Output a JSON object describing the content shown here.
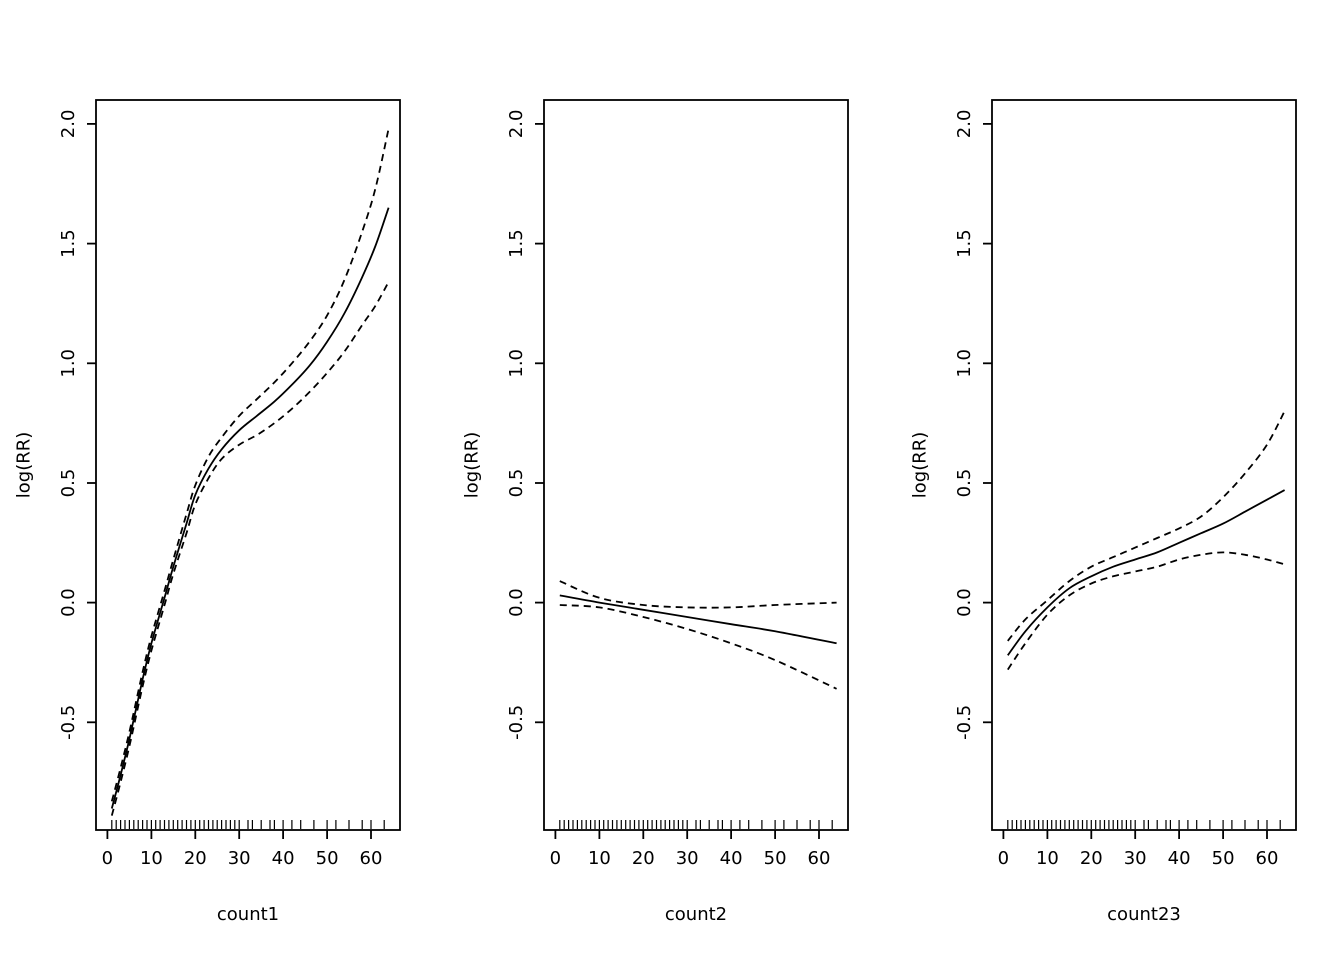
{
  "figure": {
    "background": "#ffffff",
    "line_color": "#000000"
  },
  "chart_data": [
    {
      "type": "line",
      "title": "",
      "xlabel": "count1",
      "ylabel": "log(RR)",
      "xlim": [
        -2.6,
        66.6
      ],
      "ylim": [
        -0.95,
        2.1
      ],
      "xticks": [
        "0",
        "10",
        "20",
        "30",
        "40",
        "50",
        "60"
      ],
      "xtick_values": [
        0,
        10,
        20,
        30,
        40,
        50,
        60
      ],
      "yticks": [
        "-0.5",
        "0.0",
        "0.5",
        "1.0",
        "1.5",
        "2.0"
      ],
      "ytick_values": [
        -0.5,
        0.0,
        0.5,
        1.0,
        1.5,
        2.0
      ],
      "grid": false,
      "legend": "none",
      "x": [
        1,
        3,
        5,
        8,
        10,
        13,
        15,
        18,
        20,
        23,
        26,
        30,
        34,
        38,
        42,
        46,
        50,
        54,
        58,
        61,
        64
      ],
      "series": [
        {
          "name": "estimate",
          "style": "solid",
          "values": [
            -0.86,
            -0.72,
            -0.57,
            -0.32,
            -0.17,
            0.02,
            0.15,
            0.33,
            0.45,
            0.56,
            0.64,
            0.72,
            0.78,
            0.84,
            0.91,
            0.99,
            1.09,
            1.21,
            1.36,
            1.49,
            1.65
          ]
        },
        {
          "name": "upper-ci",
          "style": "dashed",
          "values": [
            -0.83,
            -0.69,
            -0.54,
            -0.29,
            -0.14,
            0.05,
            0.18,
            0.37,
            0.49,
            0.61,
            0.69,
            0.78,
            0.85,
            0.92,
            1.0,
            1.09,
            1.2,
            1.35,
            1.55,
            1.73,
            1.98
          ]
        },
        {
          "name": "lower-ci",
          "style": "dashed",
          "values": [
            -0.89,
            -0.75,
            -0.6,
            -0.35,
            -0.2,
            -0.01,
            0.12,
            0.29,
            0.41,
            0.52,
            0.6,
            0.66,
            0.7,
            0.75,
            0.81,
            0.88,
            0.96,
            1.05,
            1.16,
            1.24,
            1.34
          ]
        }
      ],
      "rug": [
        1,
        2,
        3,
        4,
        5,
        6,
        7,
        8,
        9,
        10,
        11,
        12,
        13,
        14,
        15,
        16,
        17,
        18,
        19,
        20,
        21,
        22,
        23,
        24,
        25,
        26,
        27,
        28,
        29,
        30,
        32,
        33,
        35,
        37,
        38,
        40,
        42,
        44,
        47,
        50,
        52,
        55,
        58,
        60,
        63
      ]
    },
    {
      "type": "line",
      "title": "",
      "xlabel": "count2",
      "ylabel": "log(RR)",
      "xlim": [
        -2.6,
        66.6
      ],
      "ylim": [
        -0.95,
        2.1
      ],
      "xticks": [
        "0",
        "10",
        "20",
        "30",
        "40",
        "50",
        "60"
      ],
      "xtick_values": [
        0,
        10,
        20,
        30,
        40,
        50,
        60
      ],
      "yticks": [
        "-0.5",
        "0.0",
        "0.5",
        "1.0",
        "1.5",
        "2.0"
      ],
      "ytick_values": [
        -0.5,
        0.0,
        0.5,
        1.0,
        1.5,
        2.0
      ],
      "grid": false,
      "legend": "none",
      "x": [
        1,
        10,
        20,
        30,
        40,
        50,
        64
      ],
      "series": [
        {
          "name": "estimate",
          "style": "solid",
          "values": [
            0.03,
            0.0,
            -0.03,
            -0.06,
            -0.09,
            -0.12,
            -0.17
          ]
        },
        {
          "name": "upper-ci",
          "style": "dashed",
          "values": [
            0.09,
            0.02,
            -0.01,
            -0.02,
            -0.02,
            -0.01,
            0.0
          ]
        },
        {
          "name": "lower-ci",
          "style": "dashed",
          "values": [
            -0.01,
            -0.02,
            -0.06,
            -0.11,
            -0.17,
            -0.24,
            -0.36
          ]
        }
      ],
      "rug": [
        1,
        2,
        3,
        4,
        5,
        6,
        7,
        8,
        9,
        10,
        11,
        12,
        13,
        14,
        15,
        16,
        17,
        18,
        19,
        20,
        21,
        22,
        23,
        24,
        25,
        26,
        27,
        28,
        29,
        30,
        32,
        33,
        35,
        37,
        38,
        40,
        42,
        44,
        47,
        50,
        52,
        55,
        58,
        60,
        63
      ]
    },
    {
      "type": "line",
      "title": "",
      "xlabel": "count23",
      "ylabel": "log(RR)",
      "xlim": [
        -2.6,
        66.6
      ],
      "ylim": [
        -0.95,
        2.1
      ],
      "xticks": [
        "0",
        "10",
        "20",
        "30",
        "40",
        "50",
        "60"
      ],
      "xtick_values": [
        0,
        10,
        20,
        30,
        40,
        50,
        60
      ],
      "yticks": [
        "-0.5",
        "0.0",
        "0.5",
        "1.0",
        "1.5",
        "2.0"
      ],
      "ytick_values": [
        -0.5,
        0.0,
        0.5,
        1.0,
        1.5,
        2.0
      ],
      "grid": false,
      "legend": "none",
      "x": [
        1,
        5,
        10,
        15,
        20,
        25,
        30,
        35,
        40,
        45,
        50,
        55,
        60,
        64
      ],
      "series": [
        {
          "name": "estimate",
          "style": "solid",
          "values": [
            -0.22,
            -0.12,
            -0.02,
            0.06,
            0.11,
            0.15,
            0.18,
            0.21,
            0.25,
            0.29,
            0.33,
            0.38,
            0.43,
            0.47
          ]
        },
        {
          "name": "upper-ci",
          "style": "dashed",
          "values": [
            -0.16,
            -0.07,
            0.01,
            0.09,
            0.15,
            0.19,
            0.23,
            0.27,
            0.31,
            0.36,
            0.44,
            0.54,
            0.66,
            0.8
          ]
        },
        {
          "name": "lower-ci",
          "style": "dashed",
          "values": [
            -0.28,
            -0.17,
            -0.05,
            0.03,
            0.08,
            0.11,
            0.13,
            0.15,
            0.18,
            0.2,
            0.21,
            0.2,
            0.18,
            0.16
          ]
        }
      ],
      "rug": [
        1,
        2,
        3,
        4,
        5,
        6,
        7,
        8,
        9,
        10,
        11,
        12,
        13,
        14,
        15,
        16,
        17,
        18,
        19,
        20,
        21,
        22,
        23,
        24,
        25,
        26,
        27,
        28,
        29,
        30,
        32,
        33,
        35,
        37,
        38,
        40,
        42,
        44,
        47,
        50,
        52,
        55,
        58,
        60,
        63
      ]
    }
  ]
}
